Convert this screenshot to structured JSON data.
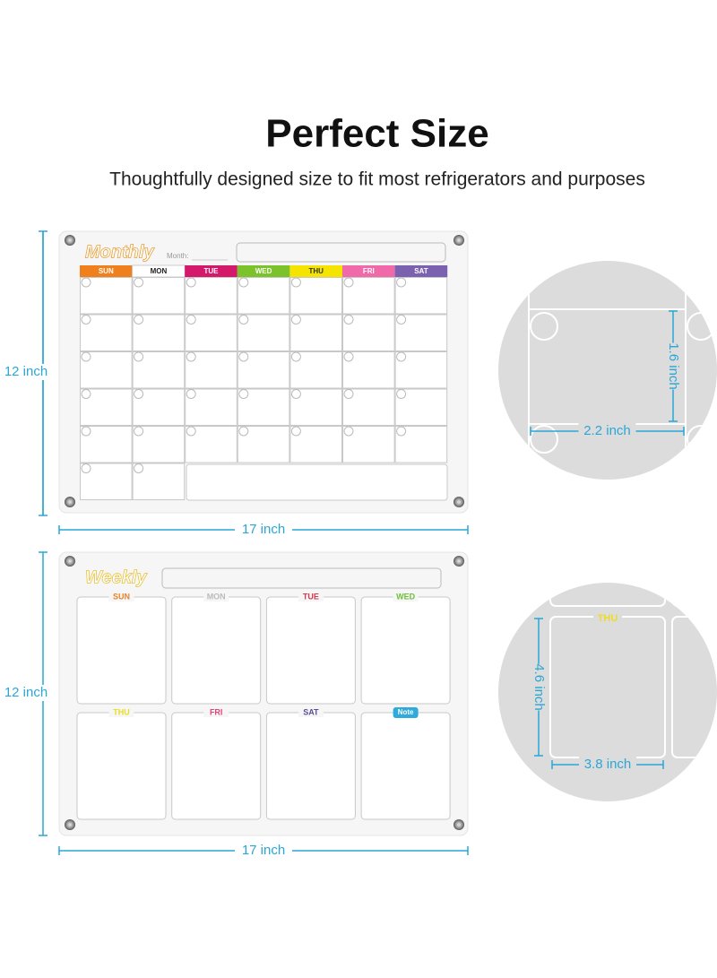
{
  "header": {
    "title": "Perfect Size",
    "subtitle": "Thoughtfully designed size to fit most refrigerators and purposes"
  },
  "monthly": {
    "logo": "Monthly",
    "month_label": "Month:",
    "days": [
      "SUN",
      "MON",
      "TUE",
      "WED",
      "THU",
      "FRI",
      "SAT"
    ],
    "height": "12 inch",
    "width": "17 inch",
    "cell_height": "1.6 inch",
    "cell_width": "2.2 inch"
  },
  "weekly": {
    "logo": "Weekly",
    "days": [
      "SUN",
      "MON",
      "TUE",
      "WED",
      "THU",
      "FRI",
      "SAT",
      "Note"
    ],
    "height": "12 inch",
    "width": "17 inch",
    "cell_height": "4.6 inch",
    "cell_width": "3.8 inch"
  }
}
